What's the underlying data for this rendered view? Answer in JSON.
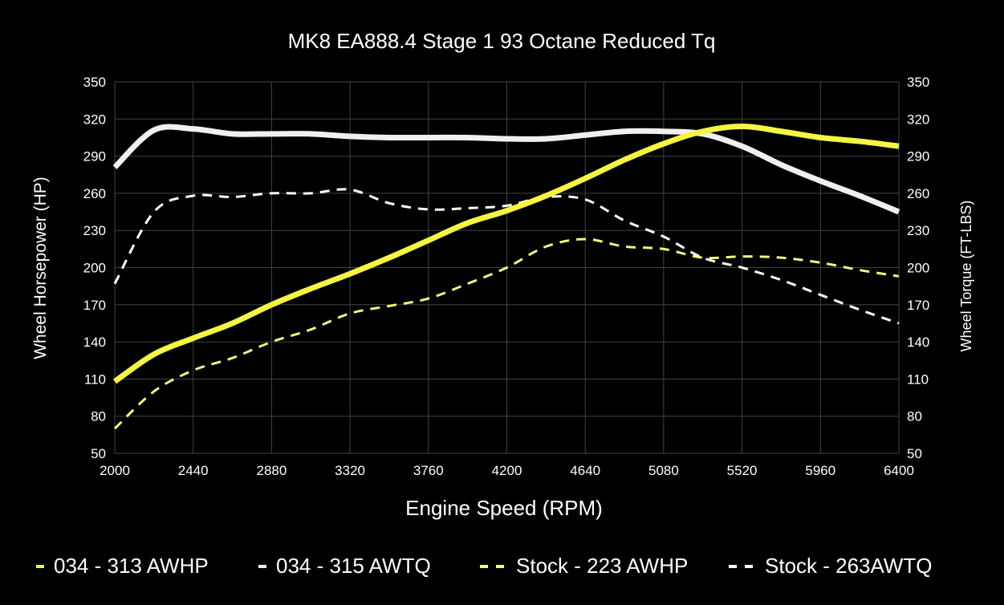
{
  "chart_data": {
    "type": "line",
    "title": "MK8 EA888.4 Stage 1 93 Octane Reduced Tq",
    "xlabel": "Engine Speed (RPM)",
    "ylabel": "Wheel Horsepower (HP)",
    "y2label": "Wheel Torque (FT-LBS)",
    "xlim": [
      2000,
      6400
    ],
    "ylim": [
      50,
      350
    ],
    "y2lim": [
      50,
      350
    ],
    "xticks": [
      2000,
      2440,
      2880,
      3320,
      3760,
      4200,
      4640,
      5080,
      5520,
      5960,
      6400
    ],
    "yticks": [
      50,
      80,
      110,
      140,
      170,
      200,
      230,
      260,
      290,
      320,
      350
    ],
    "grid": true,
    "legend": "bottom",
    "x": [
      2000,
      2220,
      2440,
      2660,
      2880,
      3100,
      3320,
      3540,
      3760,
      3980,
      4200,
      4420,
      4640,
      4860,
      5080,
      5300,
      5520,
      5740,
      5960,
      6180,
      6400
    ],
    "series": [
      {
        "name": "034 - 313 AWHP",
        "color": "#f5f542",
        "style": "solid",
        "axis": "left",
        "values": [
          108,
          130,
          143,
          155,
          170,
          183,
          195,
          208,
          222,
          236,
          246,
          258,
          272,
          287,
          300,
          310,
          314,
          310,
          305,
          302,
          298
        ]
      },
      {
        "name": "034 - 315 AWTQ",
        "color": "#f0f0f0",
        "style": "solid",
        "axis": "right",
        "values": [
          281,
          311,
          312,
          308,
          308,
          308,
          306,
          305,
          305,
          305,
          304,
          304,
          307,
          310,
          310,
          308,
          298,
          283,
          270,
          258,
          245
        ]
      },
      {
        "name": "Stock - 223 AWHP",
        "color": "#f5f57a",
        "style": "dashed",
        "axis": "left",
        "values": [
          70,
          100,
          117,
          127,
          140,
          150,
          163,
          169,
          175,
          187,
          200,
          217,
          223,
          217,
          215,
          208,
          209,
          208,
          204,
          198,
          193
        ]
      },
      {
        "name": "Stock - 263AWTQ",
        "color": "#ffffff",
        "style": "dashed",
        "axis": "right",
        "values": [
          187,
          245,
          258,
          257,
          260,
          260,
          263,
          252,
          247,
          248,
          250,
          257,
          255,
          238,
          225,
          208,
          200,
          190,
          178,
          166,
          155
        ]
      }
    ]
  }
}
